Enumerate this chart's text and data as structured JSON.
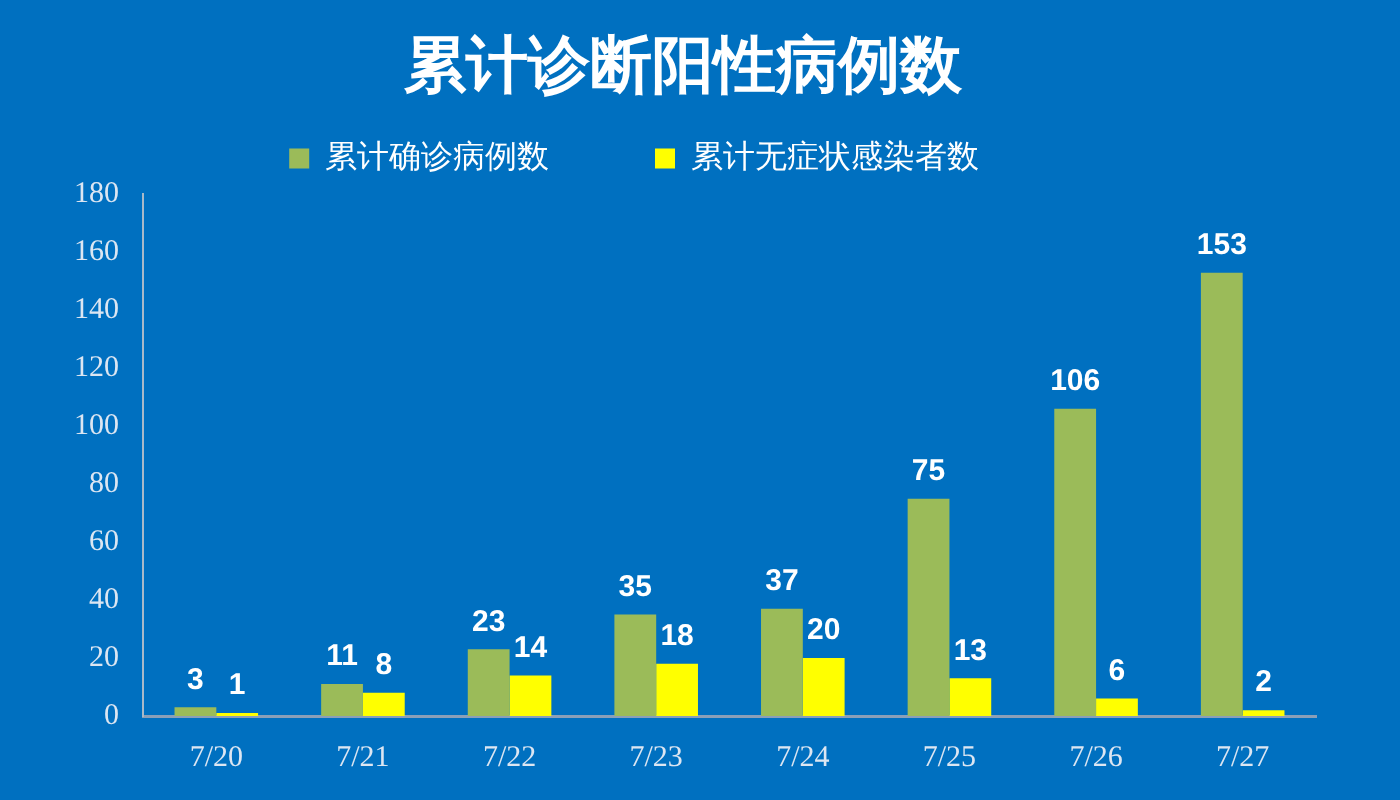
{
  "chart_data": {
    "type": "bar",
    "title": "累计诊断阳性病例数",
    "categories": [
      "7/20",
      "7/21",
      "7/22",
      "7/23",
      "7/24",
      "7/25",
      "7/26",
      "7/27"
    ],
    "series": [
      {
        "name": "累计确诊病例数",
        "color": "#9bbb59",
        "values": [
          3,
          11,
          23,
          35,
          37,
          75,
          106,
          153
        ]
      },
      {
        "name": "累计无症状感染者数",
        "color": "#ffff00",
        "values": [
          1,
          8,
          14,
          18,
          20,
          13,
          6,
          2
        ]
      }
    ],
    "ylim": [
      0,
      180
    ],
    "yticks": [
      0,
      20,
      40,
      60,
      80,
      100,
      120,
      140,
      160,
      180
    ],
    "legend": "top",
    "data_labels": true
  }
}
